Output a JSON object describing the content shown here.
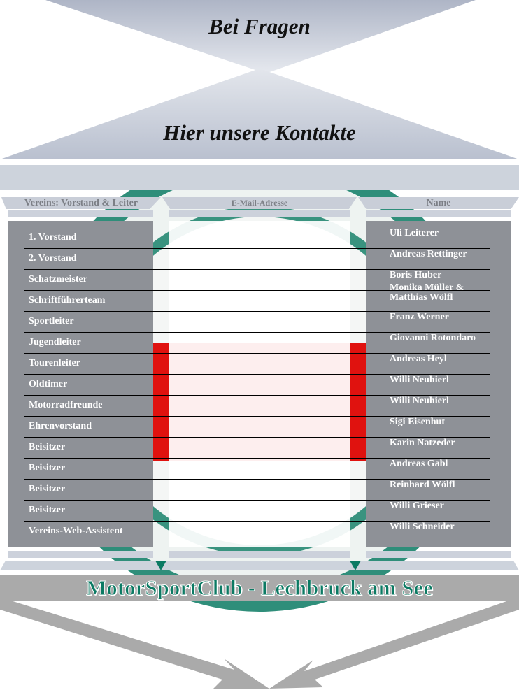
{
  "header": {
    "top_title": "Bei Fragen",
    "subtitle": "Hier unsere Kontakte"
  },
  "columns": {
    "role": "Vereins: Vorstand & Leiter",
    "email": "E-Mail-Adresse",
    "name": "Name"
  },
  "rows": [
    {
      "role": "1. Vorstand",
      "name": "Uli Leiterer"
    },
    {
      "role": "2. Vorstand",
      "name": "Andreas Rettinger"
    },
    {
      "role": "Schatzmeister",
      "name": "Boris Huber"
    },
    {
      "role": "Schriftführerteam",
      "name": "Monika Müller & Matthias Wölfl"
    },
    {
      "role": "Sportleiter",
      "name": "Franz Werner"
    },
    {
      "role": "Jugendleiter",
      "name": "Giovanni Rotondaro"
    },
    {
      "role": "Tourenleiter",
      "name": "Andreas Heyl"
    },
    {
      "role": "Oldtimer",
      "name": "Willi Neuhierl"
    },
    {
      "role": "Motorradfreunde",
      "name": "Willi Neuhierl"
    },
    {
      "role": "Ehrenvorstand",
      "name": "Sigi Eisenhut"
    },
    {
      "role": "Beisitzer",
      "name": "Karin Natzeder"
    },
    {
      "role": "Beisitzer",
      "name": "Andreas Gabl"
    },
    {
      "role": "Beisitzer",
      "name": "Reinhard Wölfl"
    },
    {
      "role": "Beisitzer",
      "name": "Willi Grieser"
    },
    {
      "role": "Vereins-Web-Assistent",
      "name": "Willi Schneider"
    }
  ],
  "footer": {
    "club_name": "MotorSportClub - Lechbruck am See"
  },
  "colors": {
    "logo_green": "#0b7a63",
    "logo_red": "#e0120f",
    "panel_gray": "#8e9197",
    "banner": "#bcc3d2"
  }
}
